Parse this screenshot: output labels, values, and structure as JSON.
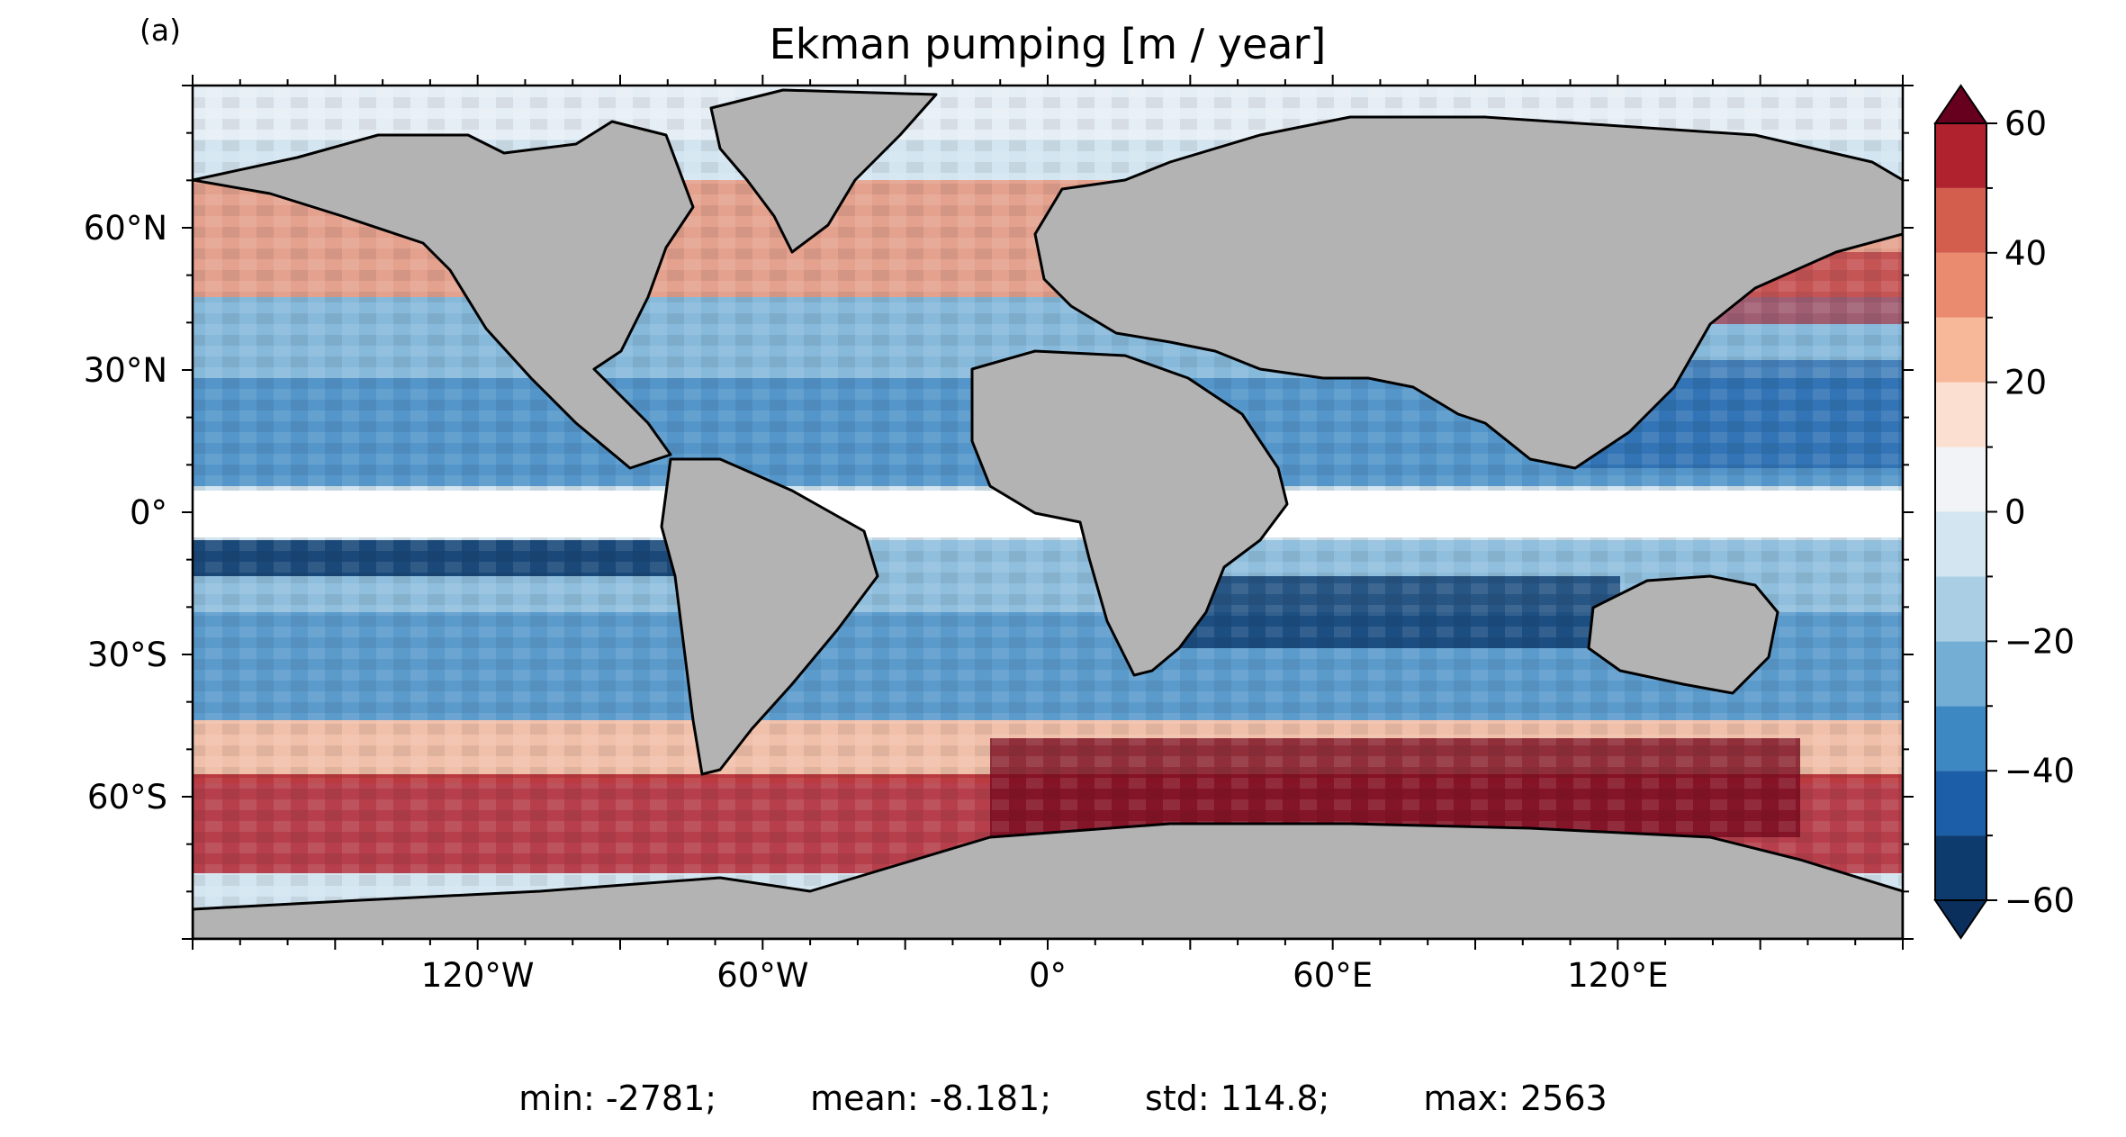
{
  "figure": {
    "panel_label": "(a)",
    "title": "Ekman pumping [m / year]"
  },
  "chart_data": {
    "type": "heatmap",
    "title": "Ekman pumping [m / year]",
    "projection": "global lat-lon map",
    "xlim": [
      -180,
      180
    ],
    "ylim": [
      -90,
      90
    ],
    "x_ticks": [
      {
        "value": -120,
        "label": "120°W"
      },
      {
        "value": -60,
        "label": "60°W"
      },
      {
        "value": 0,
        "label": "0°"
      },
      {
        "value": 60,
        "label": "60°E"
      },
      {
        "value": 120,
        "label": "120°E"
      }
    ],
    "y_ticks": [
      {
        "value": 60,
        "label": "60°N"
      },
      {
        "value": 30,
        "label": "30°N"
      },
      {
        "value": 0,
        "label": "0°"
      },
      {
        "value": -30,
        "label": "30°S"
      },
      {
        "value": -60,
        "label": "60°S"
      }
    ],
    "masked_band_lat": [
      -5,
      5
    ],
    "colorbar": {
      "colormap": "RdBu_r",
      "min": -60,
      "max": 60,
      "extend": "both",
      "levels": [
        -60,
        -50,
        -40,
        -30,
        -20,
        -10,
        0,
        10,
        20,
        30,
        40,
        50,
        60
      ],
      "colors": [
        "#0d3b6e",
        "#1c5ea7",
        "#3d88c3",
        "#74aed4",
        "#aacfe5",
        "#d3e5f0",
        "#f1f3f6",
        "#fbe0d1",
        "#f7b799",
        "#ea8a6e",
        "#d35e4e",
        "#b0222e",
        "#780a1e"
      ],
      "under_color": "#0a2f5c",
      "over_color": "#67001f",
      "tick_labels": [
        {
          "value": 60,
          "label": "60"
        },
        {
          "value": 40,
          "label": "40"
        },
        {
          "value": 20,
          "label": "20"
        },
        {
          "value": 0,
          "label": "0"
        },
        {
          "value": -20,
          "label": "−20"
        },
        {
          "value": -40,
          "label": "−40"
        },
        {
          "value": -60,
          "label": "−60"
        }
      ]
    },
    "land_color": "#b3b3b3",
    "stats": {
      "min": "min: -2781;",
      "mean": "mean: -8.181;",
      "std": "std: 114.8;",
      "max": "max: 2563"
    }
  }
}
